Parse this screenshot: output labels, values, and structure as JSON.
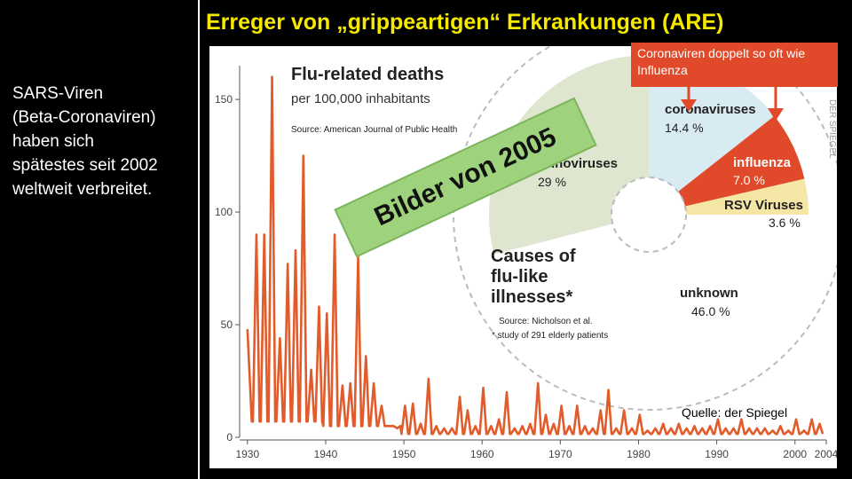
{
  "slide": {
    "left_text": "SARS-Viren\n(Beta-Coronaviren)\nhaben sich\nspätestes seit 2002\nweltweit verbreitet.",
    "headline": "Erreger von „grippeartigen“ Erkrankungen (ARE)",
    "stamp": "Bilder von 2005",
    "callout": "Coronaviren doppelt so oft wie Influenza",
    "source": "Quelle: der Spiegel",
    "watermark": "DER SPIEGEL"
  },
  "chart_data": [
    {
      "type": "line",
      "title": "Flu-related deaths",
      "subtitle": "per 100,000 inhabitants",
      "source": "Source: American Journal of Public Health",
      "xlim": [
        1929,
        2004
      ],
      "ylim": [
        0,
        165
      ],
      "x_ticks": [
        1930,
        1940,
        1950,
        1960,
        1970,
        1980,
        1990,
        2000,
        2004
      ],
      "y_ticks": [
        0,
        50,
        100,
        150
      ],
      "series_color": "#e25b2b",
      "x": [
        1930,
        1931,
        1932,
        1933,
        1934,
        1935,
        1936,
        1937,
        1938,
        1939,
        1940,
        1941,
        1942,
        1943,
        1944,
        1945,
        1946,
        1947,
        1948,
        1949,
        1950,
        1951,
        1952,
        1953,
        1954,
        1955,
        1956,
        1957,
        1958,
        1959,
        1960,
        1961,
        1962,
        1963,
        1964,
        1965,
        1966,
        1967,
        1968,
        1969,
        1970,
        1971,
        1972,
        1973,
        1974,
        1975,
        1976,
        1977,
        1978,
        1979,
        1980,
        1981,
        1982,
        1983,
        1984,
        1985,
        1986,
        1987,
        1988,
        1989,
        1990,
        1991,
        1992,
        1993,
        1994,
        1995,
        1996,
        1997,
        1998,
        1999,
        2000,
        2001,
        2002,
        2003
      ],
      "values": [
        48,
        90,
        90,
        160,
        44,
        77,
        83,
        125,
        30,
        58,
        55,
        90,
        23,
        24,
        80,
        36,
        24,
        14,
        5,
        4,
        14,
        15,
        6,
        26,
        5,
        4,
        4,
        18,
        12,
        5,
        22,
        5,
        8,
        20,
        4,
        5,
        6,
        24,
        10,
        6,
        14,
        5,
        14,
        5,
        4,
        12,
        21,
        4,
        12,
        4,
        10,
        3,
        4,
        6,
        4,
        6,
        4,
        5,
        4,
        5,
        8,
        4,
        4,
        8,
        4,
        4,
        4,
        3,
        5,
        3,
        8,
        3,
        8,
        6
      ]
    },
    {
      "type": "pie",
      "title": "Causes of flu-like illnesses*",
      "notes": [
        "Source: Nicholson et al.",
        "* study of 291 elderly patients"
      ],
      "slices": [
        {
          "label": "coronaviruses",
          "value": 14.4,
          "value_text": "14.4 %",
          "color": "#d9ebf2"
        },
        {
          "label": "influenza",
          "value": 7.0,
          "value_text": "7.0 %",
          "color": "#e04a2a"
        },
        {
          "label": "RSV Viruses",
          "value": 3.6,
          "value_text": "3.6 %",
          "color": "#f5e6a6"
        },
        {
          "label": "unknown",
          "value": 46.0,
          "value_text": "46.0 %",
          "color": "#ffffff"
        },
        {
          "label": "rhinoviruses",
          "value": 29.0,
          "value_text": "29 %",
          "color": "#dfe6cf"
        }
      ]
    }
  ]
}
